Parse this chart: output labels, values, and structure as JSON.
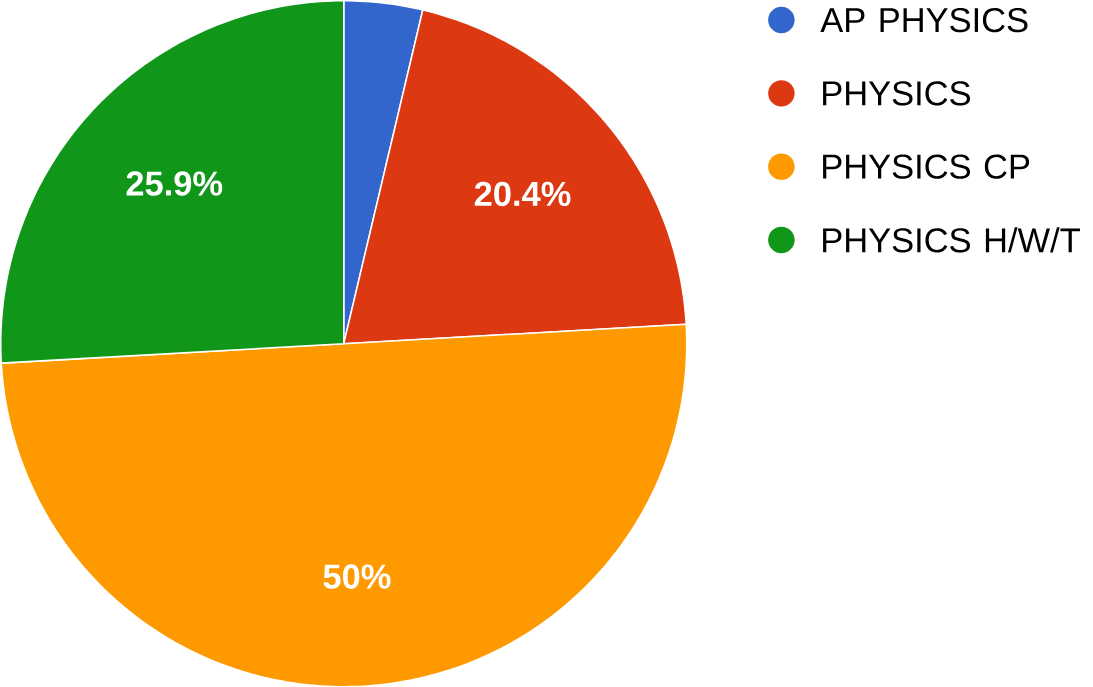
{
  "chart_data": {
    "type": "pie",
    "categories": [
      "AP PHYSICS",
      "PHYSICS",
      "PHYSICS CP",
      "PHYSICS H/W/T"
    ],
    "values": [
      3.7,
      20.4,
      50,
      25.9
    ],
    "colors": [
      "#3366cc",
      "#dc3912",
      "#ff9900",
      "#109618"
    ],
    "value_labels": [
      null,
      "20.4%",
      "50%",
      "25.9%"
    ],
    "legend": "right"
  }
}
